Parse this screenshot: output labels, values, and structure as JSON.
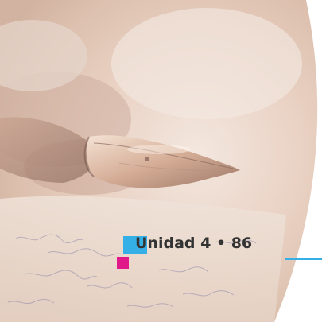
{
  "heading": {
    "text": "Unidad 4 • 86"
  },
  "colors": {
    "accent_blue": "#35b0e6",
    "accent_magenta": "#e0188a",
    "text": "#333333"
  },
  "image": {
    "subject": "fountain-pen-nib"
  }
}
